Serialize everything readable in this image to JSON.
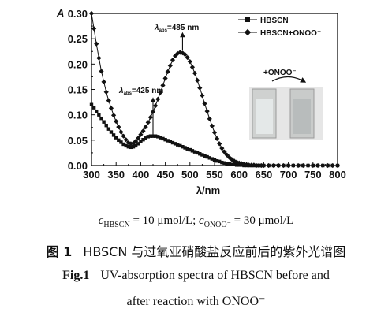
{
  "chart_data": {
    "type": "line",
    "ylabel_symbol": "A",
    "xlabel": "λ/nm",
    "xlim": [
      300,
      800
    ],
    "ylim": [
      0,
      0.3
    ],
    "xticks": [
      "300",
      "350",
      "400",
      "450",
      "500",
      "550",
      "600",
      "650",
      "700",
      "750",
      "800"
    ],
    "yticks": [
      "0.00",
      "0.05",
      "0.10",
      "0.15",
      "0.20",
      "0.25",
      "0.30"
    ],
    "legend_position": "top-right",
    "series": [
      {
        "name": "HBSCN",
        "marker": "square",
        "x": [
          300,
          305,
          310,
          315,
          320,
          325,
          330,
          335,
          340,
          345,
          350,
          355,
          360,
          365,
          370,
          375,
          380,
          385,
          390,
          395,
          400,
          405,
          410,
          415,
          420,
          425,
          430,
          435,
          440,
          445,
          450,
          455,
          460,
          465,
          470,
          475,
          480,
          485,
          490,
          495,
          500,
          505,
          510,
          515,
          520,
          525,
          530,
          535,
          540,
          545,
          550,
          555,
          560,
          565,
          570,
          575,
          580,
          585,
          590,
          595,
          600,
          605,
          610,
          615,
          620,
          625,
          630,
          635,
          640,
          645,
          650,
          660,
          670,
          680,
          690,
          700,
          710,
          720,
          730,
          740,
          750,
          760,
          770,
          780,
          790,
          800
        ],
        "values": [
          0.12,
          0.114,
          0.107,
          0.1,
          0.093,
          0.086,
          0.079,
          0.072,
          0.066,
          0.06,
          0.055,
          0.05,
          0.046,
          0.042,
          0.039,
          0.037,
          0.036,
          0.037,
          0.039,
          0.043,
          0.047,
          0.051,
          0.054,
          0.057,
          0.058,
          0.058,
          0.058,
          0.057,
          0.055,
          0.053,
          0.051,
          0.049,
          0.047,
          0.045,
          0.043,
          0.041,
          0.039,
          0.037,
          0.035,
          0.033,
          0.031,
          0.029,
          0.027,
          0.025,
          0.023,
          0.021,
          0.019,
          0.017,
          0.015,
          0.013,
          0.011,
          0.009,
          0.008,
          0.006,
          0.005,
          0.004,
          0.003,
          0.002,
          0.002,
          0.001,
          0.001,
          0.001,
          0.0,
          0.0,
          0.0,
          0.0,
          0.0,
          0.0,
          0.0,
          0.0,
          0.0,
          0.0,
          0.0,
          0.0,
          0.0,
          0.0,
          0.0,
          0.0,
          0.0,
          0.0,
          0.0,
          0.0,
          0.0,
          0.0,
          0.0,
          0.0
        ]
      },
      {
        "name": "HBSCN+ONOO⁻",
        "marker": "diamond",
        "x": [
          300,
          305,
          310,
          315,
          320,
          325,
          330,
          335,
          340,
          345,
          350,
          355,
          360,
          365,
          370,
          375,
          380,
          385,
          390,
          395,
          400,
          405,
          410,
          415,
          420,
          425,
          430,
          435,
          440,
          445,
          450,
          455,
          460,
          465,
          470,
          475,
          480,
          485,
          490,
          495,
          500,
          505,
          510,
          515,
          520,
          525,
          530,
          535,
          540,
          545,
          550,
          555,
          560,
          565,
          570,
          575,
          580,
          585,
          590,
          595,
          600,
          605,
          610,
          615,
          620,
          625,
          630,
          635,
          640,
          645,
          650,
          660,
          670,
          680,
          690,
          700,
          710,
          720,
          730,
          740,
          750,
          760,
          770,
          780,
          790,
          800
        ],
        "values": [
          0.3,
          0.27,
          0.24,
          0.212,
          0.186,
          0.165,
          0.145,
          0.128,
          0.113,
          0.099,
          0.087,
          0.076,
          0.066,
          0.058,
          0.051,
          0.045,
          0.043,
          0.044,
          0.048,
          0.054,
          0.061,
          0.068,
          0.076,
          0.085,
          0.095,
          0.106,
          0.118,
          0.131,
          0.144,
          0.158,
          0.172,
          0.185,
          0.197,
          0.208,
          0.216,
          0.221,
          0.223,
          0.222,
          0.219,
          0.213,
          0.205,
          0.194,
          0.182,
          0.168,
          0.153,
          0.138,
          0.122,
          0.107,
          0.092,
          0.078,
          0.065,
          0.053,
          0.043,
          0.034,
          0.027,
          0.021,
          0.016,
          0.012,
          0.009,
          0.007,
          0.005,
          0.004,
          0.003,
          0.002,
          0.001,
          0.001,
          0.001,
          0.0,
          0.0,
          0.0,
          0.0,
          0.0,
          0.0,
          0.0,
          0.0,
          0.0,
          0.0,
          0.0,
          0.0,
          0.0,
          0.0,
          0.0,
          0.0,
          0.0,
          0.0,
          0.0
        ]
      }
    ],
    "annotations": [
      {
        "text": "λabs=425 nm",
        "x": 425,
        "y": 0.058
      },
      {
        "text": "λabs=485 nm",
        "x": 485,
        "y": 0.222
      }
    ],
    "inset_label": "+ONOO⁻"
  },
  "caption": {
    "condition": "cHBSCN = 10 μmol/L; cONOO⁻ = 30 μmol/L",
    "cn_label": "图 1",
    "cn_text": "HBSCN 与过氧亚硝酸盐反应前后的紫外光谱图",
    "en_label": "Fig.1",
    "en_text_1": "UV-absorption spectra of HBSCN before and",
    "en_text_2": "after reaction with ONOO⁻"
  }
}
